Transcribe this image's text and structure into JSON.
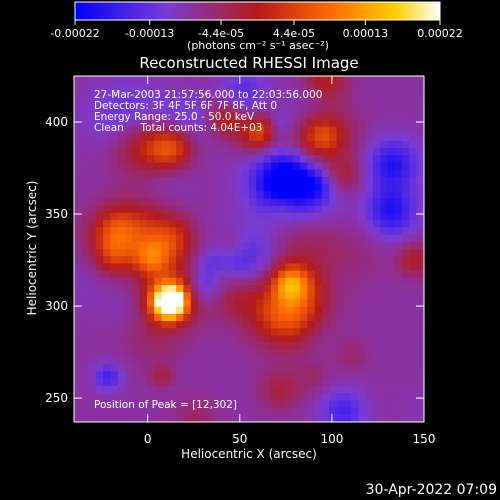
{
  "chart_data": {
    "type": "heatmap",
    "title": "Reconstructed RHESSI Image",
    "xlabel": "Heliocentric X (arcsec)",
    "ylabel": "Heliocentric Y (arcsec)",
    "xlim": [
      -40,
      150
    ],
    "ylim": [
      237,
      425
    ],
    "x_ticks": [
      0,
      50,
      100,
      150
    ],
    "y_ticks": [
      250,
      300,
      350,
      400
    ],
    "colorbar": {
      "range": [
        -0.00022,
        0.00022
      ],
      "tick_values": [
        -0.00022,
        -0.00013,
        -4.4e-05,
        4.4e-05,
        0.00013,
        0.00022
      ],
      "tick_labels": [
        "-0.00022",
        "-0.00013",
        "-4.4e-05",
        "4.4e-05",
        "0.00013",
        "0.00022"
      ],
      "unit_label": "(photons cm⁻² s⁻¹ asec⁻²)",
      "colors": [
        "#0000ff",
        "#7a3cd6",
        "#b41a1a",
        "#ff6a00",
        "#ffd000",
        "#ffffff"
      ]
    },
    "info_lines": [
      "27-Mar-2003 21:57:56.000 to 22:03:56.000",
      "Detectors: 3F 4F 5F 6F 7F 8F, Att 0",
      "Energy Range: 25.0 - 50.0 keV",
      "Clean     Total counts: 4.04E+03"
    ],
    "peak_text": "Position of Peak = [12,302]",
    "peak_position": [
      12,
      302
    ],
    "grid": false
  },
  "timestamp": "30-Apr-2022 07:09"
}
